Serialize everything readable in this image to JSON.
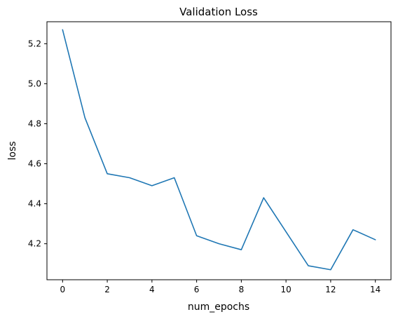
{
  "chart_data": {
    "type": "line",
    "title": "Validation Loss",
    "xlabel": "num_epochs",
    "ylabel": "loss",
    "xlim": [
      -0.7,
      14.7
    ],
    "ylim": [
      4.02,
      5.31
    ],
    "xticks": [
      0,
      2,
      4,
      6,
      8,
      10,
      12,
      14
    ],
    "yticks": [
      4.2,
      4.4,
      4.6,
      4.8,
      5.0,
      5.2
    ],
    "grid": false,
    "legend": "none",
    "series": [
      {
        "color": "#1f77b4",
        "x": [
          0,
          1,
          2,
          3,
          4,
          5,
          6,
          7,
          8,
          9,
          10,
          11,
          12,
          13,
          14
        ],
        "values": [
          5.27,
          4.83,
          4.55,
          4.53,
          4.49,
          4.53,
          4.24,
          4.2,
          4.17,
          4.43,
          4.26,
          4.09,
          4.07,
          4.27,
          4.22
        ]
      }
    ]
  }
}
